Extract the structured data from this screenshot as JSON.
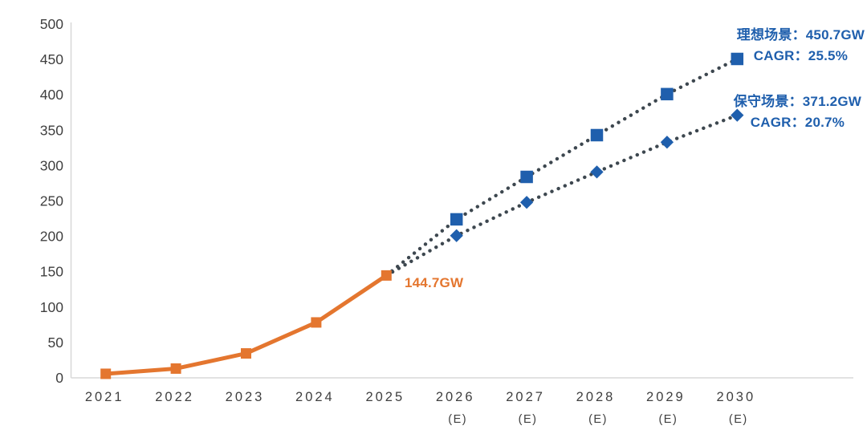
{
  "chart_data": {
    "type": "line",
    "categories": [
      "2021",
      "2022",
      "2023",
      "2024",
      "2025",
      "2026",
      "2027",
      "2028",
      "2029",
      "2030"
    ],
    "estimated_suffix_label": "(E)",
    "estimated_from_index": 5,
    "y_axis": {
      "min": 0,
      "max": 500,
      "step": 50,
      "grid": false
    },
    "legend_position": "none",
    "series": [
      {
        "id": "historical-actual",
        "style": "solid",
        "marker": "square",
        "line_color": "#e4762f",
        "marker_color": "#e4762f",
        "start_index": 0,
        "values": [
          5.7,
          13.1,
          34.5,
          78.3,
          144.7
        ]
      },
      {
        "id": "ideal-scenario",
        "style": "dotted",
        "marker": "square",
        "line_color": "#3d474f",
        "marker_color": "#1f5fad",
        "start_index": 4,
        "values": [
          144.7,
          224,
          284,
          343,
          401,
          450.7
        ]
      },
      {
        "id": "conservative-scenario",
        "style": "dotted",
        "marker": "diamond",
        "line_color": "#3d474f",
        "marker_color": "#1f5fad",
        "start_index": 4,
        "values": [
          144.7,
          201,
          248,
          291,
          333,
          371.2
        ]
      }
    ],
    "annotations": {
      "current": "144.7GW",
      "ideal": {
        "scenario": "理想场景：450.7GW",
        "cagr": "CAGR：25.5%"
      },
      "conservative": {
        "scenario": "保守场景：371.2GW",
        "cagr": "CAGR：20.7%"
      }
    },
    "colors": {
      "orange": "#e4762f",
      "blue": "#1f5fad",
      "dotted_line": "#3d474f",
      "axis_line": "#d9d9d9",
      "axis_text": "#3f3f3f",
      "background": "#ffffff"
    }
  }
}
